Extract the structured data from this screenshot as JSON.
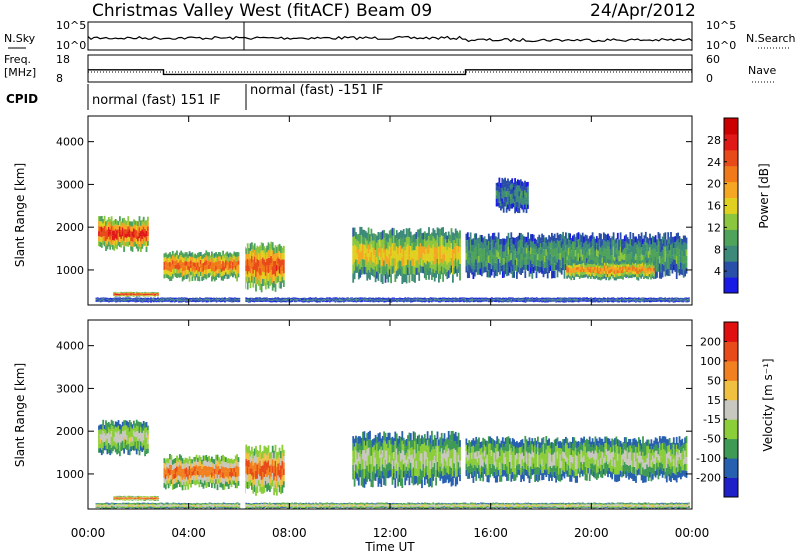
{
  "header": {
    "station": "Christmas Valley West (fitACF)",
    "beam": "Beam 09",
    "date": "24/Apr/2012"
  },
  "strips": {
    "nsky_label": "N.Sky",
    "nsearch_label": "N.Search",
    "freq_label_1": "Freq.",
    "freq_label_2": "[MHz]",
    "nave_label": "Nave",
    "cpid_label": "CPID",
    "noise_ticks": [
      "10^5",
      "10^0"
    ],
    "freq_ticks": [
      "18",
      "8"
    ],
    "nave_ticks": [
      "60",
      "0"
    ],
    "cpid_segments": [
      "normal (fast) 151 IF",
      "normal (fast) -151 IF"
    ],
    "freq_levels_mhz": [
      {
        "start_h": 0,
        "end_h": 3.0,
        "value": 12.5
      },
      {
        "start_h": 3.0,
        "end_h": 6.05,
        "value": 10.8
      },
      {
        "start_h": 6.25,
        "end_h": 15.0,
        "value": 10.8
      },
      {
        "start_h": 15.0,
        "end_h": 24.0,
        "value": 12.5
      }
    ]
  },
  "chart_data": [
    {
      "type": "heatmap",
      "panel": "power",
      "ylabel": "Slant Range [km]",
      "xlabel": "Time UT",
      "ylim": [
        180,
        4600
      ],
      "xlim_hours": [
        0,
        24
      ],
      "x_ticks": [
        "00:00",
        "04:00",
        "08:00",
        "12:00",
        "16:00",
        "20:00",
        "00:00"
      ],
      "y_ticks": [
        "1000",
        "2000",
        "3000",
        "4000"
      ],
      "colorbar": {
        "label": "Power [dB]",
        "range": [
          0,
          30
        ],
        "tick_labels": [
          "4",
          "8",
          "12",
          "16",
          "20",
          "24",
          "28"
        ],
        "colors": [
          "#1a1ae6",
          "#2a4fa8",
          "#3d8a7a",
          "#4fa35a",
          "#8cc63f",
          "#e0d020",
          "#f5a623",
          "#f07a1a",
          "#e84a1a",
          "#e01818",
          "#cc0000"
        ]
      },
      "regions": [
        {
          "t0": 0.4,
          "t1": 2.4,
          "r0": 1500,
          "r1": 2200,
          "level": 0.9
        },
        {
          "t0": 3.0,
          "t1": 6.0,
          "r0": 800,
          "r1": 1400,
          "level": 0.8
        },
        {
          "t0": 6.2,
          "t1": 7.8,
          "r0": 600,
          "r1": 1600,
          "level": 0.85
        },
        {
          "t0": 10.5,
          "t1": 14.8,
          "r0": 800,
          "r1": 1900,
          "level": 0.6
        },
        {
          "t0": 15.0,
          "t1": 23.8,
          "r0": 900,
          "r1": 1800,
          "level": 0.35
        },
        {
          "t0": 19.0,
          "t1": 22.5,
          "r0": 800,
          "r1": 1200,
          "level": 0.7
        },
        {
          "t0": 1.0,
          "t1": 2.8,
          "r0": 380,
          "r1": 480,
          "level": 0.95
        },
        {
          "t0": 0.3,
          "t1": 23.9,
          "r0": 250,
          "r1": 350,
          "level": 0.2
        },
        {
          "t0": 16.2,
          "t1": 17.5,
          "r0": 2400,
          "r1": 3100,
          "level": 0.25
        }
      ]
    },
    {
      "type": "heatmap",
      "panel": "velocity",
      "ylabel": "Slant Range [km]",
      "xlabel": "Time UT",
      "ylim": [
        180,
        4600
      ],
      "xlim_hours": [
        0,
        24
      ],
      "x_ticks": [
        "00:00",
        "04:00",
        "08:00",
        "12:00",
        "16:00",
        "20:00",
        "00:00"
      ],
      "y_ticks": [
        "1000",
        "2000",
        "3000",
        "4000"
      ],
      "colorbar": {
        "label": "Velocity [m s⁻¹]",
        "range": [
          -250,
          250
        ],
        "tick_labels": [
          "200",
          "100",
          "50",
          "15",
          "-15",
          "-50",
          "-100",
          "-200"
        ],
        "colors": [
          "#2020c8",
          "#2860b0",
          "#3f9a55",
          "#8ccd3a",
          "#c8c8c0",
          "#f0c040",
          "#f08020",
          "#e84a1a",
          "#e01010"
        ]
      },
      "regions": [
        {
          "t0": 0.4,
          "t1": 2.4,
          "r0": 1500,
          "r1": 2200,
          "level": 0.55
        },
        {
          "t0": 3.0,
          "t1": 6.0,
          "r0": 700,
          "r1": 1400,
          "level": 0.85
        },
        {
          "t0": 6.2,
          "t1": 7.8,
          "r0": 600,
          "r1": 1600,
          "level": 0.9
        },
        {
          "t0": 10.5,
          "t1": 14.8,
          "r0": 800,
          "r1": 1900,
          "level": 0.5
        },
        {
          "t0": 15.0,
          "t1": 23.8,
          "r0": 900,
          "r1": 1800,
          "level": 0.5
        },
        {
          "t0": 1.0,
          "t1": 2.8,
          "r0": 380,
          "r1": 480,
          "level": 0.9
        },
        {
          "t0": 0.3,
          "t1": 23.9,
          "r0": 200,
          "r1": 320,
          "level": 0.6
        }
      ]
    }
  ]
}
